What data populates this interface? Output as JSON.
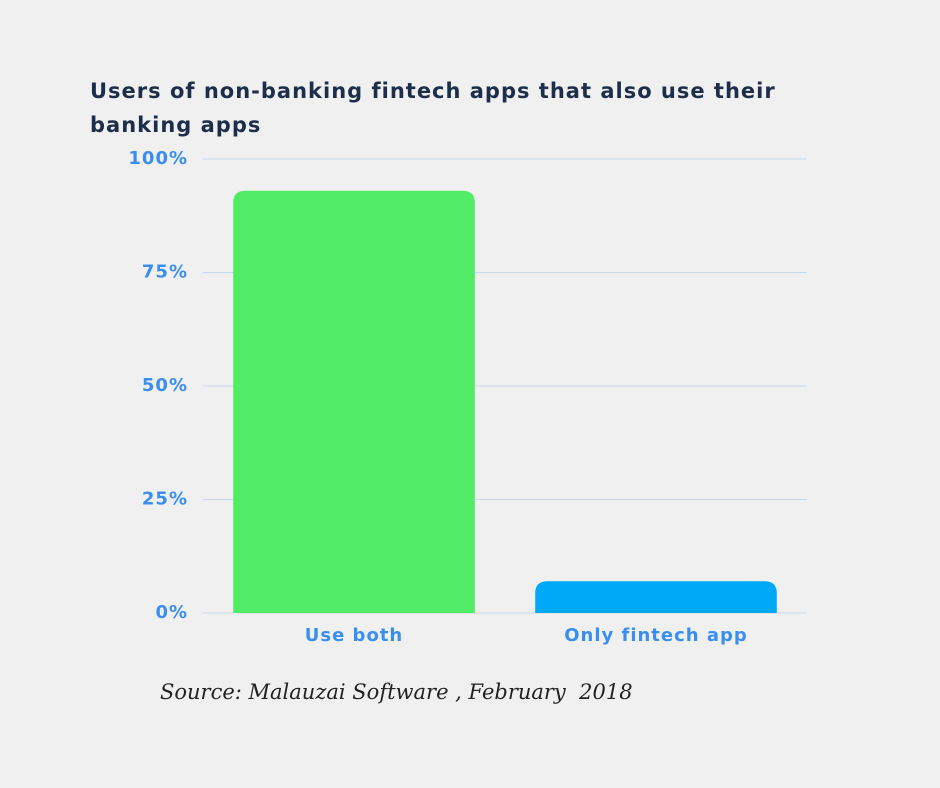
{
  "chart_data": {
    "type": "bar",
    "title": "Users of non-banking fintech apps that also use their banking apps",
    "categories": [
      "Use both",
      "Only fintech app"
    ],
    "values": [
      93,
      7
    ],
    "colors": [
      "#52eb65",
      "#00a8f8"
    ],
    "ylim": [
      0,
      100
    ],
    "yticks": [
      {
        "value": 0,
        "label": "0%"
      },
      {
        "value": 25,
        "label": "25%"
      },
      {
        "value": 50,
        "label": "50%"
      },
      {
        "value": 75,
        "label": "75%"
      },
      {
        "value": 100,
        "label": "100%"
      }
    ],
    "grid": true,
    "source": "Source: Malauzai Software , February  2018"
  }
}
